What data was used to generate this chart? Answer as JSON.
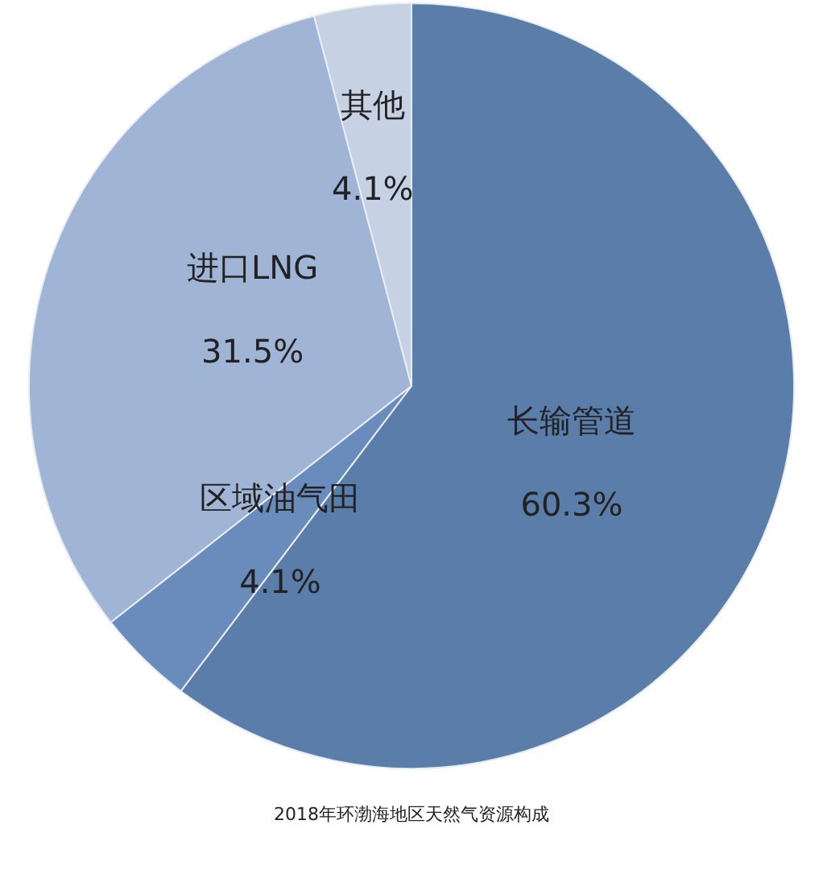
{
  "chart_data": {
    "type": "pie",
    "title": "2018年环渤海地区天然气资源构成",
    "categories": [
      "长输管道",
      "区域油气田",
      "进口LNG",
      "其他"
    ],
    "values": [
      60.3,
      4.1,
      31.5,
      4.1
    ],
    "value_labels": [
      "60.3%",
      "4.1%",
      "31.5%",
      "4.1%"
    ],
    "colors": [
      "#5a7ea9",
      "#6a8cbc",
      "#a0b4d5",
      "#c6d1e4"
    ]
  }
}
